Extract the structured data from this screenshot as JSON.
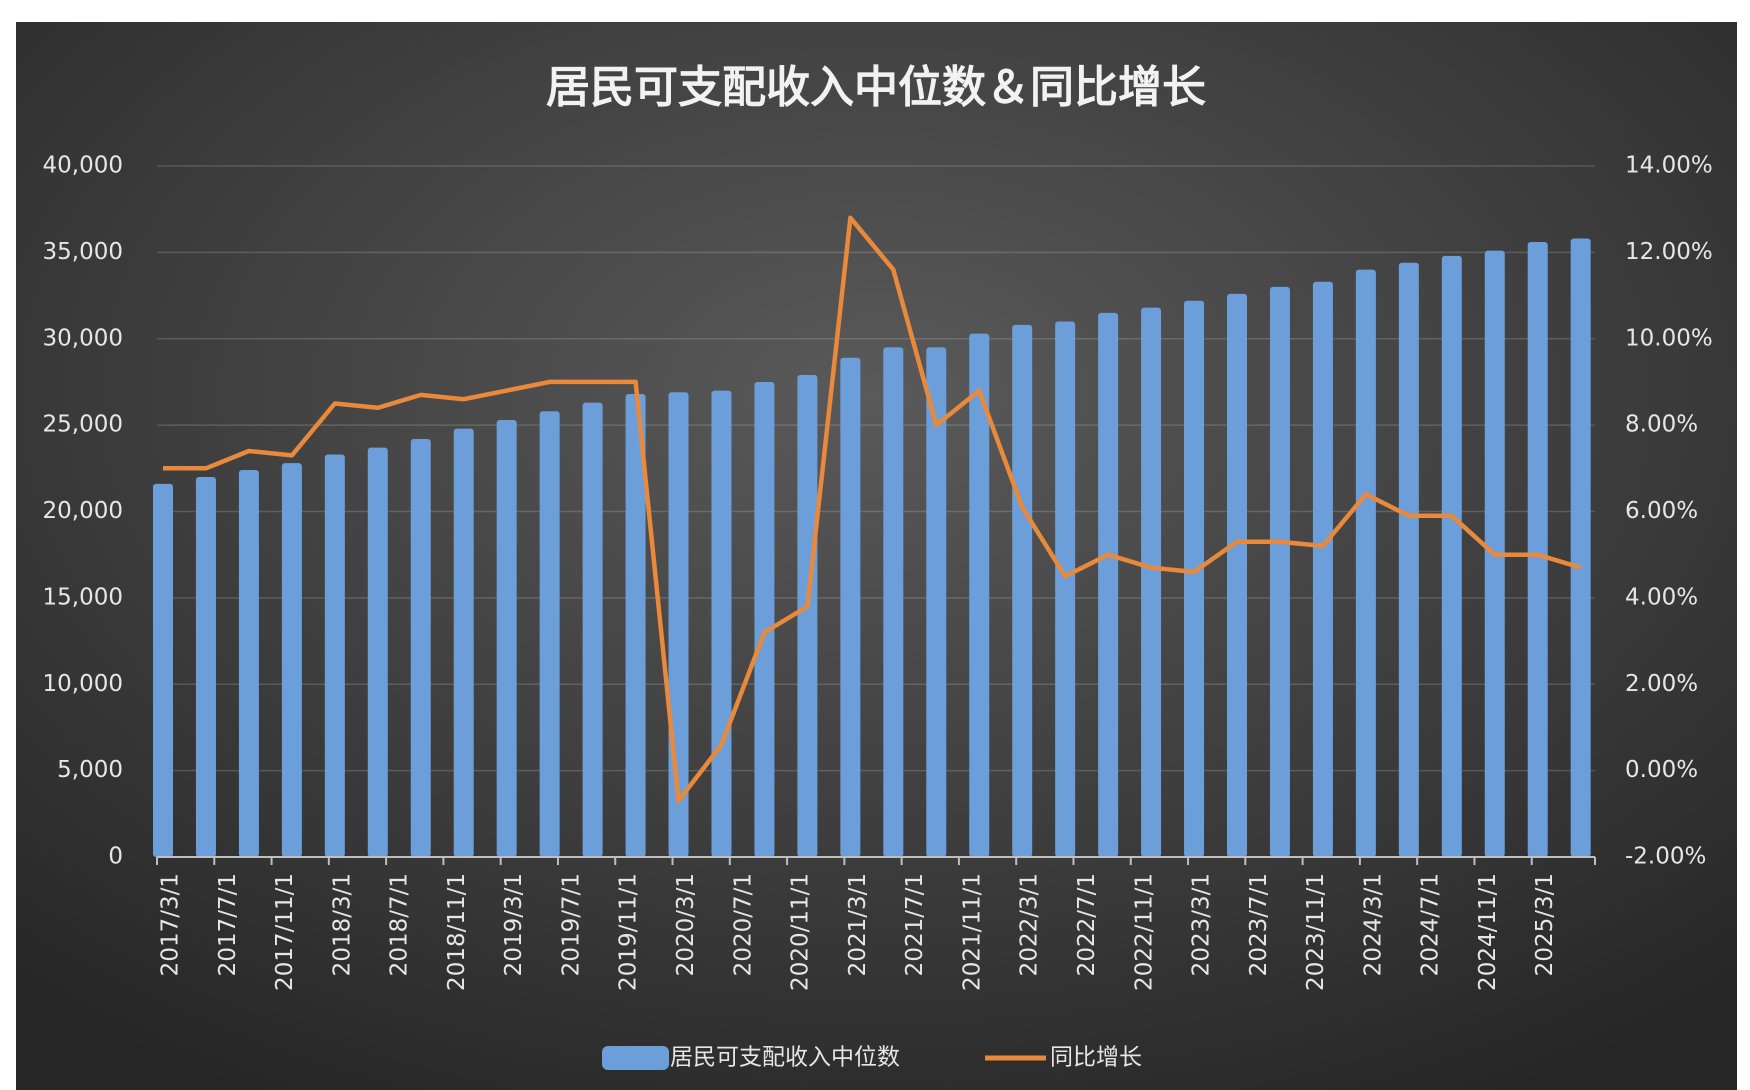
{
  "chart_data": {
    "type": "bar+line",
    "title": "居民可支配收入中位数＆同比增长",
    "x": [
      "2017/3/1",
      "2017/6/1",
      "2017/9/1",
      "2017/12/1",
      "2018/3/1",
      "2018/6/1",
      "2018/9/1",
      "2018/12/1",
      "2019/3/1",
      "2019/6/1",
      "2019/9/1",
      "2019/12/1",
      "2020/3/1",
      "2020/6/1",
      "2020/9/1",
      "2020/12/1",
      "2021/3/1",
      "2021/6/1",
      "2021/9/1",
      "2021/12/1",
      "2022/3/1",
      "2022/6/1",
      "2022/9/1",
      "2022/12/1",
      "2023/3/1",
      "2023/6/1",
      "2023/9/1",
      "2023/12/1",
      "2024/3/1",
      "2024/6/1",
      "2024/9/1",
      "2024/12/1",
      "2025/3/1",
      "2025/6/1"
    ],
    "series": [
      {
        "name": "居民可支配收入中位数",
        "type": "bar",
        "color": "#6c9fd9",
        "axis": "y",
        "values": [
          21600,
          22000,
          22400,
          22800,
          23300,
          23700,
          24200,
          24800,
          25300,
          25800,
          26300,
          26800,
          26900,
          27000,
          27500,
          27900,
          28900,
          29500,
          29500,
          30300,
          30800,
          31000,
          31500,
          31800,
          32200,
          32600,
          33000,
          33300,
          34000,
          34400,
          34800,
          35100,
          35600,
          35800
        ]
      },
      {
        "name": "同比增长",
        "type": "line",
        "color": "#e8893c",
        "axis": "y2",
        "values": [
          7.0,
          7.0,
          7.4,
          7.3,
          8.5,
          8.4,
          8.7,
          8.6,
          8.8,
          9.0,
          9.0,
          9.0,
          -0.7,
          0.6,
          3.2,
          3.8,
          12.8,
          11.6,
          8.0,
          8.8,
          6.1,
          4.5,
          5.0,
          4.7,
          4.6,
          5.3,
          5.3,
          5.2,
          6.4,
          5.9,
          5.9,
          5.0,
          5.0,
          4.7
        ]
      }
    ],
    "xlim": [
      "2017/3/1",
      "2025/7/1"
    ],
    "xticks": [
      "2017/3/1",
      "2017/7/1",
      "2017/11/1",
      "2018/3/1",
      "2018/7/1",
      "2018/11/1",
      "2019/3/1",
      "2019/7/1",
      "2019/11/1",
      "2020/3/1",
      "2020/7/1",
      "2020/11/1",
      "2021/3/1",
      "2021/7/1",
      "2021/11/1",
      "2022/3/1",
      "2022/7/1",
      "2022/11/1",
      "2023/3/1",
      "2023/7/1",
      "2023/11/1",
      "2024/3/1",
      "2024/7/1",
      "2024/11/1",
      "2025/3/1"
    ],
    "ylim": [
      0,
      40000
    ],
    "yticks": [
      0,
      {
        "value": 5000,
        "label": "5,000"
      },
      {
        "value": 10000,
        "label": "10,000"
      },
      {
        "value": 15000,
        "label": "15,000"
      },
      {
        "value": 20000,
        "label": "20,000"
      },
      {
        "value": 25000,
        "label": "25,000"
      },
      {
        "value": 30000,
        "label": "30,000"
      },
      {
        "value": 35000,
        "label": "35,000"
      },
      {
        "value": 40000,
        "label": "40,000"
      }
    ],
    "y2lim": [
      -2,
      14
    ],
    "y2ticks": [
      {
        "value": -2,
        "label": "-2.00%"
      },
      {
        "value": 0,
        "label": "0.00%"
      },
      {
        "value": 2,
        "label": "2.00%"
      },
      {
        "value": 4,
        "label": "4.00%"
      },
      {
        "value": 6,
        "label": "6.00%"
      },
      {
        "value": 8,
        "label": "8.00%"
      },
      {
        "value": 10,
        "label": "10.00%"
      },
      {
        "value": 12,
        "label": "12.00%"
      },
      {
        "value": 14,
        "label": "14.00%"
      }
    ],
    "grid": true,
    "legend": "bottom"
  }
}
